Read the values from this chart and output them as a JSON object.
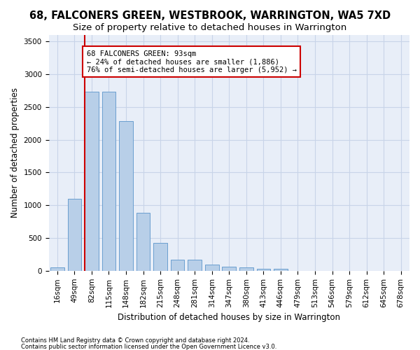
{
  "title": "68, FALCONERS GREEN, WESTBROOK, WARRINGTON, WA5 7XD",
  "subtitle": "Size of property relative to detached houses in Warrington",
  "xlabel": "Distribution of detached houses by size in Warrington",
  "ylabel": "Number of detached properties",
  "bar_values": [
    50,
    1100,
    2730,
    2730,
    2290,
    880,
    430,
    170,
    165,
    90,
    60,
    50,
    35,
    25,
    0,
    0,
    0,
    0,
    0,
    0,
    0
  ],
  "bar_labels": [
    "16sqm",
    "49sqm",
    "82sqm",
    "115sqm",
    "148sqm",
    "182sqm",
    "215sqm",
    "248sqm",
    "281sqm",
    "314sqm",
    "347sqm",
    "380sqm",
    "413sqm",
    "446sqm",
    "479sqm",
    "513sqm",
    "546sqm",
    "579sqm",
    "612sqm",
    "645sqm",
    "678sqm"
  ],
  "bar_color": "#b8cfe8",
  "bar_edge_color": "#6a9fd0",
  "vline_x_index": 2,
  "vline_color": "#cc0000",
  "annotation_text": "68 FALCONERS GREEN: 93sqm\n← 24% of detached houses are smaller (1,886)\n76% of semi-detached houses are larger (5,952) →",
  "annotation_box_edgecolor": "#cc0000",
  "ylim": [
    0,
    3600
  ],
  "yticks": [
    0,
    500,
    1000,
    1500,
    2000,
    2500,
    3000,
    3500
  ],
  "grid_color": "#c8d4e8",
  "bg_color": "#e8eef8",
  "footnote1": "Contains HM Land Registry data © Crown copyright and database right 2024.",
  "footnote2": "Contains public sector information licensed under the Open Government Licence v3.0.",
  "title_fontsize": 10.5,
  "subtitle_fontsize": 9.5,
  "xlabel_fontsize": 8.5,
  "ylabel_fontsize": 8.5,
  "tick_fontsize": 7.5,
  "annot_fontsize": 7.5
}
